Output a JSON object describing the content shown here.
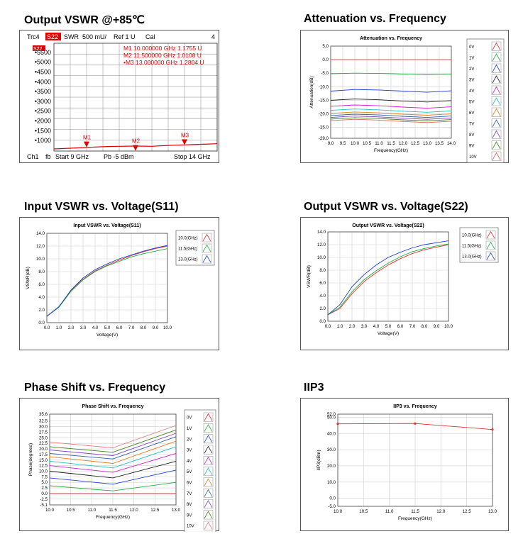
{
  "headings": {
    "vna": "Output VSWR @+85℃",
    "att": "Attenuation vs. Frequency",
    "s11": "Input VSWR vs. Voltage(S11)",
    "s22": "Output VSWR vs. Voltage(S22)",
    "phase": "Phase Shift vs. Frequency",
    "iip3": "IIP3"
  },
  "vna": {
    "top": {
      "trc": "Trc4",
      "param": "S22",
      "format": "SWR",
      "scale": "500 mU/",
      "ref": "Ref 1 U",
      "cal": "Cal",
      "num": "4"
    },
    "bottom": {
      "ch": "Ch1",
      "fb": "fb",
      "start": "Start  9 GHz",
      "pb": "Pb   -5 dBm",
      "stop": "Stop  14 GHz"
    },
    "badge": "S22",
    "markers": [
      {
        "label": "M1",
        "row": "M1   10.000000  GHz    1.1755  U",
        "freq": 10.0,
        "vswr": 1.1755
      },
      {
        "label": "M2",
        "row": "M2   11.500000  GHz    1.0108  U",
        "freq": 11.5,
        "vswr": 1.0108
      },
      {
        "label": "M3",
        "row": "•M3   13.000000  GHz    1.2804  U",
        "freq": 13.0,
        "vswr": 1.2804
      }
    ],
    "ytick_labels": [
      "5500",
      "5000",
      "4500",
      "4000",
      "3500",
      "3000",
      "2500",
      "2000",
      "1500",
      "1000"
    ],
    "ylim": [
      1,
      6
    ],
    "xlim": [
      9,
      14
    ],
    "colors": {
      "trace": "#e00000",
      "grid": "#888888",
      "badge": "#e00000"
    }
  },
  "chart_data": [
    {
      "id": "att",
      "type": "line",
      "title": "Attenuation vs. Frequency",
      "xlabel": "Frequency(GHz)",
      "ylabel": "Attenuation(dB)",
      "xlim": [
        9.0,
        14.0
      ],
      "ylim": [
        -29.0,
        5.0
      ],
      "xticks": [
        9.0,
        9.5,
        10.0,
        10.5,
        11.0,
        11.5,
        12.0,
        12.5,
        13.0,
        13.5,
        14.0
      ],
      "xtick_labels": [
        "9.0",
        "9.5",
        "10.0",
        "10.5",
        "11.0",
        "11.5",
        "12.0",
        "12.5",
        "13.0",
        "13.5",
        "14.0"
      ],
      "yticks": [
        5,
        0,
        -5,
        -10,
        -15,
        -20,
        -25,
        -29
      ],
      "ytick_labels": [
        "5.0",
        "0.0",
        "-5.0",
        "-10.0",
        "-15.0",
        "-20.0",
        "-25.0",
        "-29.0"
      ],
      "grid": true,
      "legend": "right",
      "x": [
        9.0,
        10.0,
        11.0,
        12.0,
        13.0,
        14.0
      ],
      "series": [
        {
          "name": "0V",
          "color": "#e03030",
          "values": [
            0.0,
            0.0,
            0.0,
            0.0,
            0.0,
            0.0
          ]
        },
        {
          "name": "1V",
          "color": "#20b040",
          "values": [
            -5.2,
            -5.0,
            -5.1,
            -5.3,
            -5.6,
            -5.4
          ]
        },
        {
          "name": "2V",
          "color": "#2040d0",
          "values": [
            -11.6,
            -11.0,
            -11.2,
            -11.6,
            -12.0,
            -11.5
          ]
        },
        {
          "name": "3V",
          "color": "#202020",
          "values": [
            -15.0,
            -14.5,
            -14.8,
            -15.3,
            -15.6,
            -15.1
          ]
        },
        {
          "name": "4V",
          "color": "#d020d0",
          "values": [
            -17.2,
            -16.7,
            -17.0,
            -17.5,
            -17.9,
            -17.4
          ]
        },
        {
          "name": "5V",
          "color": "#20c0c0",
          "values": [
            -18.7,
            -18.2,
            -18.5,
            -19.0,
            -19.4,
            -18.9
          ]
        },
        {
          "name": "6V",
          "color": "#e08020",
          "values": [
            -19.8,
            -19.3,
            -19.6,
            -20.1,
            -20.5,
            -20.0
          ]
        },
        {
          "name": "7V",
          "color": "#3060a0",
          "values": [
            -20.6,
            -20.1,
            -20.4,
            -20.9,
            -21.3,
            -20.8
          ]
        },
        {
          "name": "8V",
          "color": "#8040c0",
          "values": [
            -21.3,
            -20.8,
            -21.1,
            -21.6,
            -22.0,
            -21.5
          ]
        },
        {
          "name": "9V",
          "color": "#408020",
          "values": [
            -21.9,
            -21.4,
            -21.7,
            -22.2,
            -22.6,
            -22.1
          ]
        },
        {
          "name": "10V",
          "color": "#e06060",
          "values": [
            -22.5,
            -22.0,
            -22.3,
            -22.8,
            -23.2,
            -22.7
          ]
        }
      ]
    },
    {
      "id": "s11",
      "type": "line",
      "title": "Input VSWR vs. Voltage(S11)",
      "xlabel": "Voltage(V)",
      "ylabel": "VSWR(dB)",
      "xlim": [
        0.0,
        10.0
      ],
      "ylim": [
        0.0,
        14.0
      ],
      "xticks": [
        0,
        1,
        2,
        3,
        4,
        5,
        6,
        7,
        8,
        9,
        10
      ],
      "xtick_labels": [
        "0.0",
        "1.0",
        "2.0",
        "3.0",
        "4.0",
        "5.0",
        "6.0",
        "7.0",
        "8.0",
        "9.0",
        "10.0"
      ],
      "yticks": [
        0,
        2,
        4,
        6,
        8,
        10,
        12,
        14
      ],
      "ytick_labels": [
        "0.0",
        "2.0",
        "4.0",
        "6.0",
        "8.0",
        "10.0",
        "12.0",
        "14.0"
      ],
      "grid": true,
      "legend": "top-right",
      "x": [
        0,
        1,
        2,
        3,
        4,
        5,
        6,
        7,
        8,
        9,
        10
      ],
      "series": [
        {
          "name": "10.0(GHz)",
          "color": "#e03030",
          "values": [
            1.0,
            2.5,
            5.0,
            6.8,
            8.1,
            9.0,
            9.8,
            10.5,
            11.1,
            11.6,
            12.0
          ]
        },
        {
          "name": "11.5(GHz)",
          "color": "#20b040",
          "values": [
            1.0,
            2.4,
            4.9,
            6.7,
            8.0,
            8.9,
            9.6,
            10.3,
            10.8,
            11.2,
            11.6
          ]
        },
        {
          "name": "13.0(GHz)",
          "color": "#2040d0",
          "values": [
            1.0,
            2.5,
            5.1,
            7.0,
            8.3,
            9.2,
            10.0,
            10.6,
            11.2,
            11.7,
            12.1
          ]
        }
      ]
    },
    {
      "id": "s22",
      "type": "line",
      "title": "Output VSWR vs. Voltage(S22)",
      "xlabel": "Voltage(V)",
      "ylabel": "VSWR(dB)",
      "xlim": [
        0.0,
        10.0
      ],
      "ylim": [
        0.0,
        14.0
      ],
      "xticks": [
        0,
        1,
        2,
        3,
        4,
        5,
        6,
        7,
        8,
        9,
        10
      ],
      "xtick_labels": [
        "0.0",
        "1.0",
        "2.0",
        "3.0",
        "4.0",
        "5.0",
        "6.0",
        "7.0",
        "8.0",
        "9.0",
        "10.0"
      ],
      "yticks": [
        0,
        2,
        4,
        6,
        8,
        10,
        12,
        14
      ],
      "ytick_labels": [
        "0.0",
        "2.0",
        "4.0",
        "6.0",
        "8.0",
        "10.0",
        "12.0",
        "14.0"
      ],
      "grid": true,
      "legend": "top-right",
      "x": [
        0,
        1,
        2,
        3,
        4,
        5,
        6,
        7,
        8,
        9,
        10
      ],
      "series": [
        {
          "name": "10.0(GHz)",
          "color": "#e03030",
          "values": [
            1.0,
            2.0,
            4.3,
            6.2,
            7.6,
            8.8,
            9.8,
            10.6,
            11.2,
            11.6,
            12.0
          ]
        },
        {
          "name": "11.5(GHz)",
          "color": "#20b040",
          "values": [
            1.0,
            2.2,
            4.6,
            6.5,
            7.9,
            9.1,
            10.1,
            10.9,
            11.4,
            11.8,
            12.1
          ]
        },
        {
          "name": "13.0(GHz)",
          "color": "#2040d0",
          "values": [
            1.0,
            2.6,
            5.4,
            7.3,
            8.8,
            10.0,
            10.8,
            11.5,
            12.0,
            12.3,
            12.6
          ]
        }
      ]
    },
    {
      "id": "phase",
      "type": "line",
      "title": "Phase Shift vs. Frequency",
      "xlabel": "Frequency(GHz)",
      "ylabel": "Phase(degrees)",
      "xlim": [
        10.0,
        13.0
      ],
      "ylim": [
        -5.1,
        35.6
      ],
      "xticks": [
        10.0,
        10.5,
        11.0,
        11.5,
        12.0,
        12.5,
        13.0
      ],
      "xtick_labels": [
        "10.0",
        "10.5",
        "11.0",
        "11.5",
        "12.0",
        "12.5",
        "13.0"
      ],
      "yticks": [
        35.6,
        32.5,
        30,
        27.5,
        25,
        22.5,
        20,
        17.5,
        15,
        12.5,
        10,
        7.5,
        5,
        2.5,
        0,
        -2.5,
        -5.1
      ],
      "ytick_labels": [
        "35.6",
        "32.5",
        "30.0",
        "27.5",
        "25.0",
        "22.5",
        "20.0",
        "17.5",
        "15.0",
        "12.5",
        "10.0",
        "7.5",
        "5.0",
        "2.5",
        "0.0",
        "-2.5",
        "-5.1"
      ],
      "grid": true,
      "legend": "right",
      "x": [
        10.0,
        11.5,
        13.0
      ],
      "series": [
        {
          "name": "0V",
          "color": "#e03030",
          "values": [
            0.0,
            0.0,
            0.0
          ]
        },
        {
          "name": "1V",
          "color": "#20b040",
          "values": [
            3.5,
            1.2,
            5.0
          ]
        },
        {
          "name": "2V",
          "color": "#2040d0",
          "values": [
            7.0,
            4.2,
            10.5
          ]
        },
        {
          "name": "3V",
          "color": "#202020",
          "values": [
            10.0,
            7.0,
            14.5
          ]
        },
        {
          "name": "4V",
          "color": "#d020d0",
          "values": [
            12.5,
            9.5,
            18.0
          ]
        },
        {
          "name": "5V",
          "color": "#20c0c0",
          "values": [
            14.5,
            11.5,
            21.0
          ]
        },
        {
          "name": "6V",
          "color": "#e08020",
          "values": [
            16.5,
            13.5,
            23.5
          ]
        },
        {
          "name": "7V",
          "color": "#3060a0",
          "values": [
            18.0,
            15.5,
            25.5
          ]
        },
        {
          "name": "8V",
          "color": "#8040c0",
          "values": [
            19.5,
            17.0,
            27.0
          ]
        },
        {
          "name": "9V",
          "color": "#408020",
          "values": [
            21.0,
            18.5,
            28.5
          ]
        },
        {
          "name": "10V",
          "color": "#e08080",
          "values": [
            23.0,
            20.5,
            30.5
          ]
        }
      ]
    },
    {
      "id": "iip3",
      "type": "line",
      "title": "IIP3 vs. Frequency",
      "xlabel": "Frequency(GHz)",
      "ylabel": "IIP3(dBm)",
      "xlim": [
        10.0,
        13.0
      ],
      "ylim": [
        -5.0,
        52.0
      ],
      "xticks": [
        10.0,
        10.5,
        11.0,
        11.5,
        12.0,
        12.5,
        13.0
      ],
      "xtick_labels": [
        "10.0",
        "10.5",
        "11.0",
        "11.5",
        "12.0",
        "12.5",
        "13.0"
      ],
      "yticks": [
        52,
        50,
        40,
        30,
        20,
        10,
        0,
        -5
      ],
      "ytick_labels": [
        "52.0",
        "50.0",
        "40.0",
        "30.0",
        "20.0",
        "10.0",
        "0.0",
        "-5.0"
      ],
      "grid": true,
      "legend": "none",
      "x": [
        10.0,
        11.5,
        13.0
      ],
      "series": [
        {
          "name": "",
          "color": "#e03030",
          "values": [
            46.0,
            46.2,
            42.5
          ]
        }
      ]
    }
  ]
}
